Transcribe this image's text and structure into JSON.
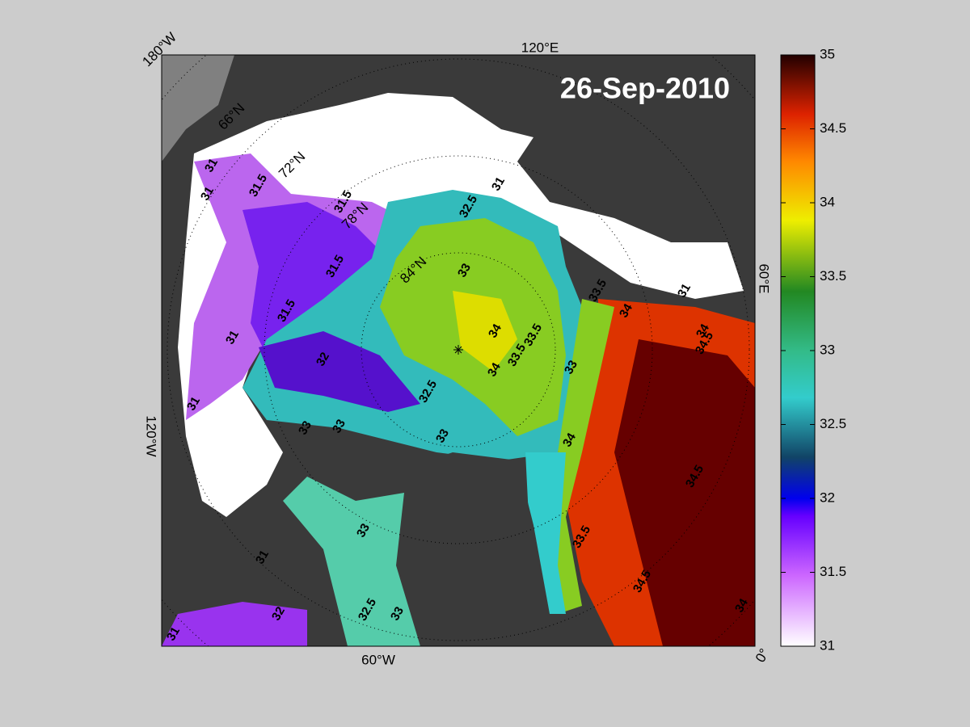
{
  "title": "26-Sep-2010",
  "map": {
    "lon_labels": [
      "180°W",
      "120°E",
      "60°E",
      "0°",
      "60°W",
      "120°W"
    ],
    "lat_labels": [
      "66°N",
      "72°N",
      "78°N",
      "84°N"
    ],
    "contour_labels": [
      31,
      31,
      31.5,
      31.5,
      31.5,
      31.5,
      31,
      32,
      32.5,
      33,
      33,
      33,
      33,
      34,
      33.5,
      33.5,
      34,
      33.5,
      34,
      34,
      34.5,
      33,
      34,
      34.5,
      33.5,
      34.5,
      34,
      32.5,
      33,
      33,
      32,
      31,
      31,
      31,
      31,
      32.5,
      31
    ]
  },
  "colorbar": {
    "lim": [
      31,
      35
    ],
    "ticks": [
      31,
      31.5,
      32,
      32.5,
      33,
      33.5,
      34,
      34.5,
      35
    ]
  }
}
